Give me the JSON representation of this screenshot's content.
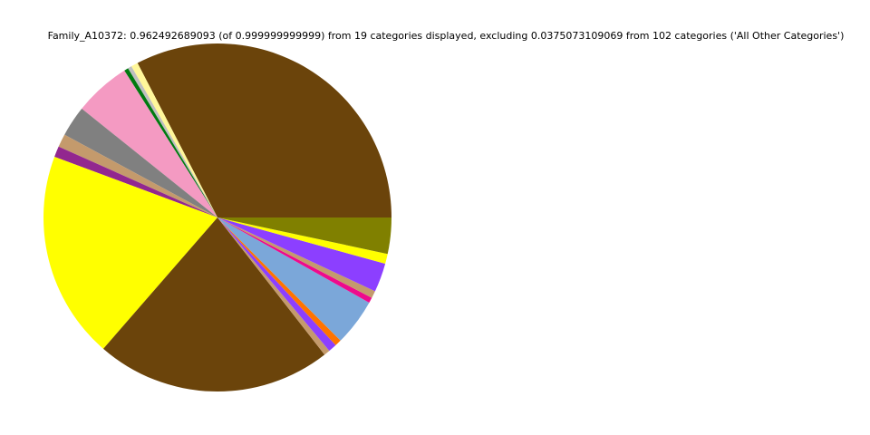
{
  "chart_data": {
    "type": "pie",
    "title": "Family_A10372: 0.962492689093 (of 0.999999999999) from 19 categories displayed, excluding 0.0375073109069 from 102 categories ('All Other Categories')",
    "start_angle_deg": 0,
    "direction": "counterclockwise",
    "legend": "none",
    "slices": [
      {
        "value": 0.326,
        "color": "#6b440b"
      },
      {
        "value": 0.0064,
        "color": "#fff79a"
      },
      {
        "value": 0.0036,
        "color": "#bfbfbf"
      },
      {
        "value": 0.0039,
        "color": "#007a10"
      },
      {
        "value": 0.0525,
        "color": "#f49ac2"
      },
      {
        "value": 0.0286,
        "color": "#808080"
      },
      {
        "value": 0.0122,
        "color": "#c49a6c"
      },
      {
        "value": 0.01,
        "color": "#92278f"
      },
      {
        "value": 0.1928,
        "color": "#ffff00"
      },
      {
        "value": 0.2194,
        "color": "#6b440b"
      },
      {
        "value": 0.0056,
        "color": "#c49a6c"
      },
      {
        "value": 0.0078,
        "color": "#8c3fff"
      },
      {
        "value": 0.0061,
        "color": "#ff7400"
      },
      {
        "value": 0.0436,
        "color": "#7ba7d9"
      },
      {
        "value": 0.005,
        "color": "#ee0a8c"
      },
      {
        "value": 0.0067,
        "color": "#c49a6c"
      },
      {
        "value": 0.0269,
        "color": "#8c3fff"
      },
      {
        "value": 0.0092,
        "color": "#ffff00"
      },
      {
        "value": 0.0336,
        "color": "#808000"
      }
    ]
  }
}
